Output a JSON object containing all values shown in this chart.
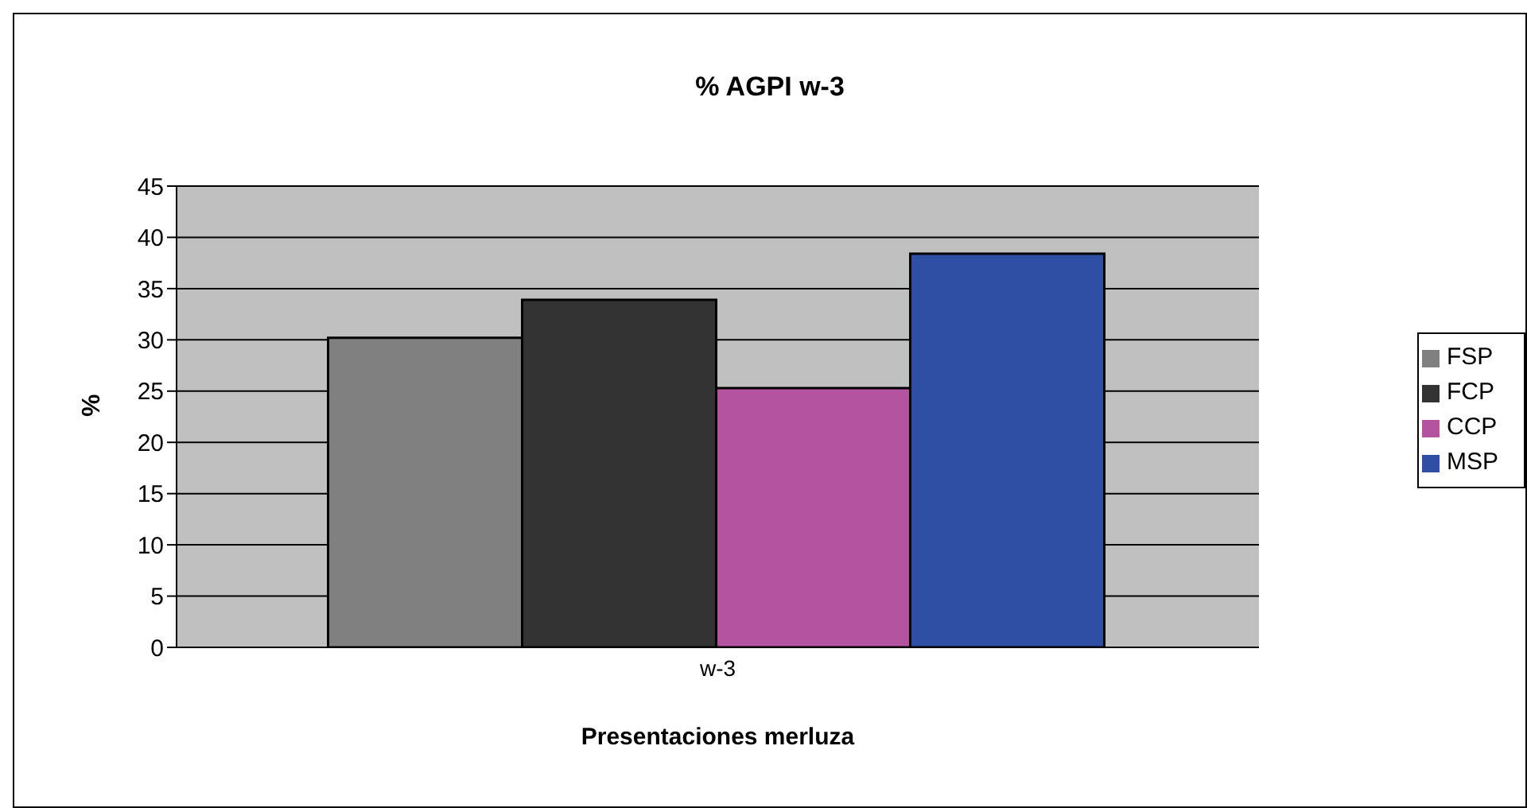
{
  "chart_data": {
    "type": "bar",
    "title": "% AGPI w-3",
    "xlabel": "Presentaciones merluza",
    "ylabel": "%",
    "categories": [
      "w-3"
    ],
    "series": [
      {
        "name": "FSP",
        "color": "#808080",
        "values": [
          30.2
        ]
      },
      {
        "name": "FCP",
        "color": "#333333",
        "values": [
          33.9
        ]
      },
      {
        "name": "CCP",
        "color": "#b4539f",
        "values": [
          25.3
        ]
      },
      {
        "name": "MSP",
        "color": "#2e4fa3",
        "values": [
          38.4
        ]
      }
    ],
    "ylim": [
      0,
      45
    ],
    "yticks": [
      0,
      5,
      10,
      15,
      20,
      25,
      30,
      35,
      40,
      45
    ],
    "grid": "y",
    "legend": "right"
  }
}
